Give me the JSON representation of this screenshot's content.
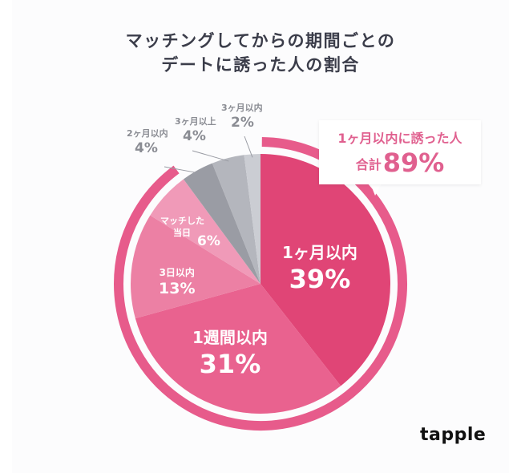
{
  "title": {
    "line1": "マッチングしてからの期間ごとの",
    "line2": "デートに誘った人の割合"
  },
  "callout": {
    "line1": "1ヶ月以内に誘った人",
    "prefix": "合計",
    "value": "89%"
  },
  "logo": "tapple",
  "labels": {
    "month1": {
      "name": "1ヶ月以内",
      "pct": "39%"
    },
    "week1": {
      "name": "1週間以内",
      "pct": "31%"
    },
    "day3": {
      "name": "3日以内",
      "pct": "13%"
    },
    "sameday": {
      "name1": "マッチした",
      "name2": "当日",
      "pct": "6%"
    },
    "month2": {
      "name": "2ヶ月以内",
      "pct": "4%"
    },
    "over3": {
      "name": "3ヶ月以上",
      "pct": "4%"
    },
    "month3": {
      "name": "3ヶ月以内",
      "pct": "2%"
    }
  },
  "colors": {
    "month1": "#e04576",
    "week1": "#e9628f",
    "day3": "#ec80a4",
    "sameday": "#f09ab8",
    "month2": "#9a9ca4",
    "over3": "#b4b6bd",
    "month3": "#cbcdd3",
    "ring": "#e75b8b",
    "title": "#3b3d4a"
  },
  "chart_data": {
    "type": "pie",
    "title": "マッチングしてからの期間ごとのデートに誘った人の割合",
    "categories": [
      "1ヶ月以内",
      "1週間以内",
      "3日以内",
      "マッチした当日",
      "2ヶ月以内",
      "3ヶ月以上",
      "3ヶ月以内"
    ],
    "values": [
      39,
      31,
      13,
      6,
      4,
      4,
      2
    ],
    "unit": "%",
    "annotations": [
      "1ヶ月以内に誘った人 合計89%"
    ],
    "start_angle": "12 o'clock, clockwise"
  }
}
